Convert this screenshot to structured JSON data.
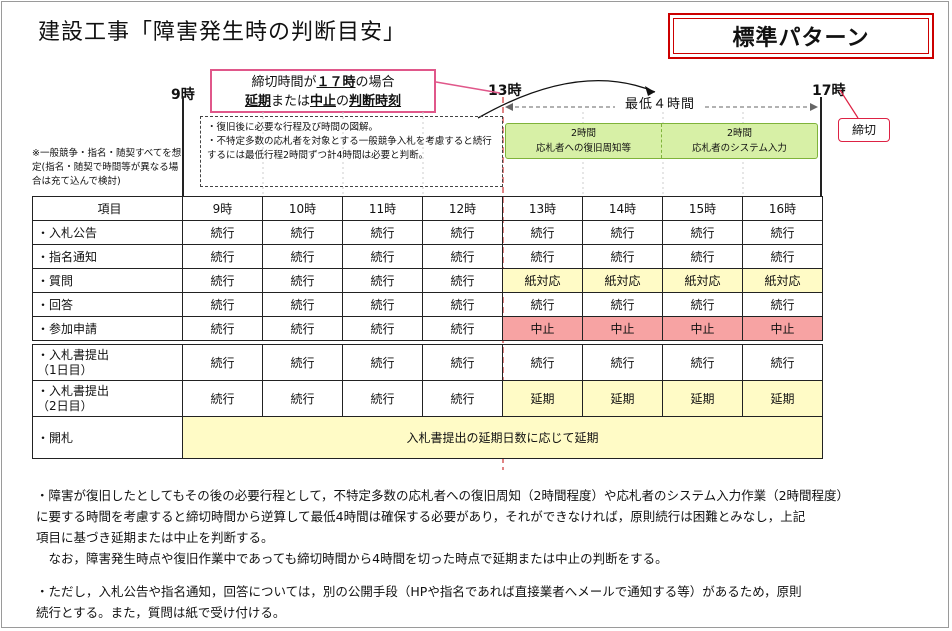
{
  "title": "建設工事「障害発生時の判断目安」",
  "pattern_label": "標準パターン",
  "callout": {
    "line1_pre": "締切時間が",
    "line1_bold": "１７時",
    "line1_post": "の場合",
    "line2_a": "延期",
    "line2_b": "または",
    "line2_c": "中止",
    "line2_d": "の",
    "line2_e": "判断時刻"
  },
  "hours": {
    "start": "9時",
    "judge": "13時",
    "deadline": "17時"
  },
  "min_hours_label": "最低４時間",
  "deadline_label": "締切",
  "note_box": "・復旧後に必要な行程及び時間の図解。\n・不特定多数の応札者を対象とする一般競争入札を考慮すると続行するには最低行程2時間ずつ計4時間は必要と判断。",
  "side_note": "※一般競争・指名・随契すべてを想定(指名・随契で時間等が異なる場合は充て込んで検討)",
  "green_boxes": [
    {
      "duration": "2時間",
      "label": "応札者への復旧周知等"
    },
    {
      "duration": "2時間",
      "label": "応札者のシステム入力"
    }
  ],
  "table": {
    "header": [
      "項目",
      "9時",
      "10時",
      "11時",
      "12時",
      "13時",
      "14時",
      "15時",
      "16時"
    ],
    "rows_top": [
      {
        "label": "・入札公告",
        "cells": [
          "続行",
          "続行",
          "続行",
          "続行",
          "続行",
          "続行",
          "続行",
          "続行"
        ]
      },
      {
        "label": "・指名通知",
        "cells": [
          "続行",
          "続行",
          "続行",
          "続行",
          "続行",
          "続行",
          "続行",
          "続行"
        ]
      },
      {
        "label": "・質問",
        "cells": [
          "続行",
          "続行",
          "続行",
          "続行",
          "紙対応",
          "紙対応",
          "紙対応",
          "紙対応"
        ]
      },
      {
        "label": "・回答",
        "cells": [
          "続行",
          "続行",
          "続行",
          "続行",
          "続行",
          "続行",
          "続行",
          "続行"
        ]
      },
      {
        "label": "・参加申請",
        "cells": [
          "続行",
          "続行",
          "続行",
          "続行",
          "中止",
          "中止",
          "中止",
          "中止"
        ]
      }
    ],
    "rows_bottom": [
      {
        "label": "・入札書提出\n（1日目）",
        "cells": [
          "続行",
          "続行",
          "続行",
          "続行",
          "続行",
          "続行",
          "続行",
          "続行"
        ]
      },
      {
        "label": "・入札書提出\n（2日目）",
        "cells": [
          "続行",
          "続行",
          "続行",
          "続行",
          "延期",
          "延期",
          "延期",
          "延期"
        ]
      }
    ],
    "kaisatsu_label": "・開札",
    "kaisatsu_text": "入札書提出の延期日数に応じて延期"
  },
  "paragraphs": [
    "・障害が復旧したとしてもその後の必要行程として，不特定多数の応札者への復旧周知（2時間程度）や応札者のシステム入力作業（2時間程度）",
    "に要する時間を考慮すると締切時間から逆算して最低4時間は確保する必要があり，それができなければ，原則続行は困難とみなし，上記",
    "項目に基づき延期または中止を判断する。",
    "　なお，障害発生時点や復旧作業中であっても締切時間から4時間を切った時点で延期または中止の判断をする。",
    "・ただし，入札公告や指名通知，回答については，別の公開手段（HPや指名であれば直接業者へメールで通知する等）があるため，原則",
    "続行とする。また，質問は紙で受け付ける。"
  ],
  "colors": {
    "yellow": "#fffbc6",
    "red": "#f7a3a3",
    "green": "#d7f0a6",
    "accent": "#cc0000"
  }
}
